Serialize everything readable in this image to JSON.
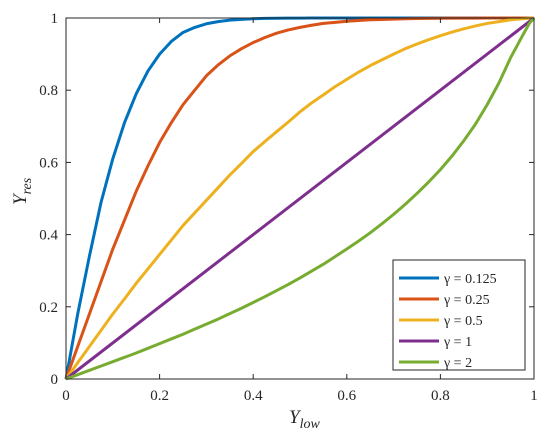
{
  "chart_data": {
    "type": "line",
    "xlabel": {
      "main": "Y",
      "sub": "low"
    },
    "ylabel": {
      "main": "Y",
      "sub": "res"
    },
    "xlim": [
      0,
      1
    ],
    "ylim": [
      0,
      1
    ],
    "xticks": [
      "0",
      "0.2",
      "0.4",
      "0.6",
      "0.8",
      "1"
    ],
    "yticks": [
      "0",
      "0.2",
      "0.4",
      "0.6",
      "0.8",
      "1"
    ],
    "grid": false,
    "legend_position": "bottom-right",
    "series": [
      {
        "name": "γ = 0.125",
        "color": "#0072BD",
        "x": [
          0,
          0.025,
          0.05,
          0.075,
          0.1,
          0.125,
          0.15,
          0.175,
          0.2,
          0.225,
          0.25,
          0.275,
          0.3,
          0.325,
          0.35,
          0.375,
          0.4,
          0.425,
          0.45,
          0.475,
          0.5,
          0.525,
          0.55,
          0.575,
          0.6,
          0.625,
          0.65,
          0.675,
          0.7,
          0.725,
          0.75,
          0.775,
          0.8,
          0.825,
          0.85,
          0.875,
          0.9,
          0.925,
          0.95,
          0.975,
          1
        ],
        "y": [
          0,
          0.18,
          0.34,
          0.49,
          0.61,
          0.71,
          0.79,
          0.853,
          0.9,
          0.935,
          0.96,
          0.974,
          0.984,
          0.99,
          0.994,
          0.996,
          0.998,
          0.999,
          0.9994,
          0.9997,
          0.9998,
          0.9999,
          0.99995,
          1,
          1,
          1,
          1,
          1,
          1,
          1,
          1,
          1,
          1,
          1,
          1,
          1,
          1,
          1,
          1,
          1,
          1
        ]
      },
      {
        "name": "γ = 0.25",
        "color": "#D95319",
        "x": [
          0,
          0.025,
          0.05,
          0.075,
          0.1,
          0.125,
          0.15,
          0.175,
          0.2,
          0.225,
          0.25,
          0.275,
          0.3,
          0.325,
          0.35,
          0.375,
          0.4,
          0.425,
          0.45,
          0.475,
          0.5,
          0.525,
          0.55,
          0.575,
          0.6,
          0.625,
          0.65,
          0.675,
          0.7,
          0.725,
          0.75,
          0.775,
          0.8,
          0.825,
          0.85,
          0.875,
          0.9,
          0.925,
          0.95,
          0.975,
          1
        ],
        "y": [
          0,
          0.09,
          0.18,
          0.27,
          0.36,
          0.44,
          0.52,
          0.59,
          0.655,
          0.71,
          0.76,
          0.8,
          0.84,
          0.87,
          0.895,
          0.915,
          0.932,
          0.946,
          0.958,
          0.967,
          0.974,
          0.98,
          0.985,
          0.988,
          0.991,
          0.993,
          0.995,
          0.996,
          0.997,
          0.998,
          0.9985,
          0.999,
          0.9993,
          0.9995,
          0.9997,
          0.9998,
          0.9999,
          0.99995,
          1,
          1,
          1
        ]
      },
      {
        "name": "γ = 0.5",
        "color": "#EDB120",
        "x": [
          0,
          0.025,
          0.05,
          0.075,
          0.1,
          0.125,
          0.15,
          0.175,
          0.2,
          0.225,
          0.25,
          0.275,
          0.3,
          0.325,
          0.35,
          0.375,
          0.4,
          0.425,
          0.45,
          0.475,
          0.5,
          0.525,
          0.55,
          0.575,
          0.6,
          0.625,
          0.65,
          0.675,
          0.7,
          0.725,
          0.75,
          0.775,
          0.8,
          0.825,
          0.85,
          0.875,
          0.9,
          0.925,
          0.95,
          0.975,
          1
        ],
        "y": [
          0,
          0.045,
          0.09,
          0.135,
          0.18,
          0.222,
          0.265,
          0.305,
          0.345,
          0.385,
          0.425,
          0.46,
          0.495,
          0.53,
          0.565,
          0.597,
          0.63,
          0.658,
          0.685,
          0.712,
          0.74,
          0.765,
          0.787,
          0.81,
          0.83,
          0.85,
          0.868,
          0.884,
          0.9,
          0.915,
          0.928,
          0.94,
          0.951,
          0.961,
          0.97,
          0.978,
          0.985,
          0.99,
          0.995,
          0.998,
          1
        ]
      },
      {
        "name": "γ = 1",
        "color": "#7E2F8E",
        "x": [
          0,
          1
        ],
        "y": [
          0,
          1
        ]
      },
      {
        "name": "γ = 2",
        "color": "#77AC30",
        "x": [
          0,
          0.025,
          0.05,
          0.075,
          0.1,
          0.125,
          0.15,
          0.175,
          0.2,
          0.225,
          0.25,
          0.275,
          0.3,
          0.325,
          0.35,
          0.375,
          0.4,
          0.425,
          0.45,
          0.475,
          0.5,
          0.525,
          0.55,
          0.575,
          0.6,
          0.625,
          0.65,
          0.675,
          0.7,
          0.725,
          0.75,
          0.775,
          0.8,
          0.825,
          0.85,
          0.875,
          0.9,
          0.925,
          0.95,
          0.975,
          0.99,
          1
        ],
        "y": [
          0,
          0.012,
          0.024,
          0.036,
          0.048,
          0.06,
          0.072,
          0.085,
          0.098,
          0.111,
          0.124,
          0.138,
          0.152,
          0.166,
          0.181,
          0.196,
          0.212,
          0.228,
          0.245,
          0.262,
          0.28,
          0.299,
          0.318,
          0.339,
          0.36,
          0.382,
          0.405,
          0.43,
          0.456,
          0.484,
          0.514,
          0.546,
          0.58,
          0.618,
          0.66,
          0.706,
          0.76,
          0.82,
          0.89,
          0.95,
          0.985,
          1
        ]
      }
    ]
  }
}
